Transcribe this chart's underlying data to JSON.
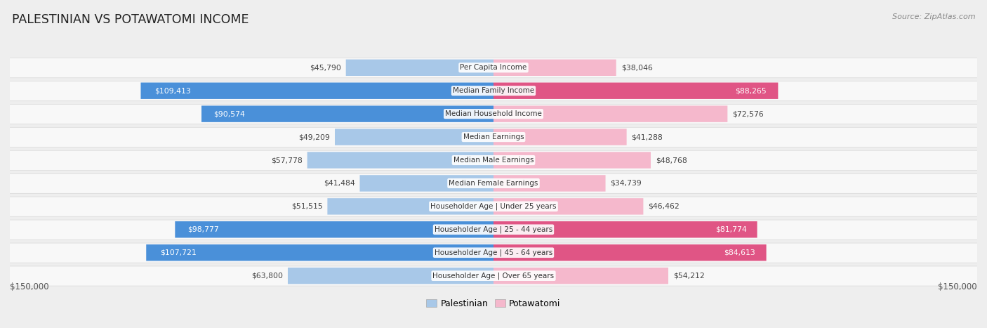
{
  "title": "PALESTINIAN VS POTAWATOMI INCOME",
  "source": "Source: ZipAtlas.com",
  "categories": [
    "Per Capita Income",
    "Median Family Income",
    "Median Household Income",
    "Median Earnings",
    "Median Male Earnings",
    "Median Female Earnings",
    "Householder Age | Under 25 years",
    "Householder Age | 25 - 44 years",
    "Householder Age | 45 - 64 years",
    "Householder Age | Over 65 years"
  ],
  "palestinian_values": [
    45790,
    109413,
    90574,
    49209,
    57778,
    41484,
    51515,
    98777,
    107721,
    63800
  ],
  "potawatomi_values": [
    38046,
    88265,
    72576,
    41288,
    48768,
    34739,
    46462,
    81774,
    84613,
    54212
  ],
  "palestinian_labels": [
    "$45,790",
    "$109,413",
    "$90,574",
    "$49,209",
    "$57,778",
    "$41,484",
    "$51,515",
    "$98,777",
    "$107,721",
    "$63,800"
  ],
  "potawatomi_labels": [
    "$38,046",
    "$88,265",
    "$72,576",
    "$41,288",
    "$48,768",
    "$34,739",
    "$46,462",
    "$81,774",
    "$84,613",
    "$54,212"
  ],
  "palestinian_color_light": "#a8c8e8",
  "palestinian_color_dark": "#4a90d9",
  "potawatomi_color_light": "#f5b8cc",
  "potawatomi_color_dark": "#e05585",
  "max_value": 150000,
  "background_color": "#eeeeee",
  "row_bg_color": "#f8f8f8",
  "row_border_color": "#dddddd",
  "label_dark_threshold": 75000,
  "legend_palestinian": "Palestinian",
  "legend_potawatomi": "Potawatomi",
  "axis_label": "$150,000"
}
